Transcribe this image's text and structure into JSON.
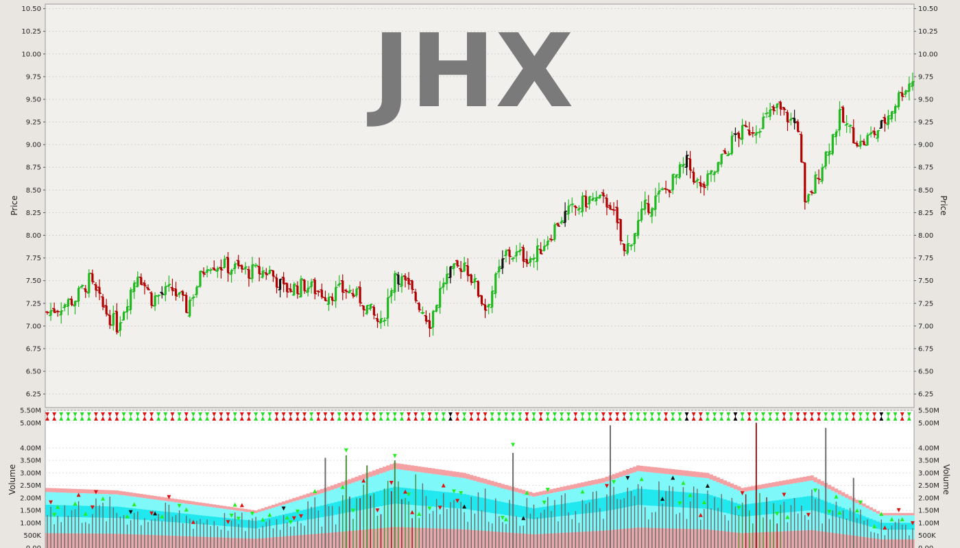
{
  "chart_data": [
    {
      "type": "candlestick",
      "title": "JHX",
      "ylabel": "Price",
      "ylim": [
        6.1,
        10.55
      ],
      "ytick_labels": [
        "10.50",
        "10.25",
        "10.00",
        "9.75",
        "9.50",
        "9.25",
        "9.00",
        "8.75",
        "8.50",
        "8.25",
        "8.00",
        "7.75",
        "7.50",
        "7.25",
        "7.00",
        "6.75",
        "6.50",
        "6.25"
      ],
      "grid": true,
      "n_bars": 250,
      "anchors": [
        [
          0,
          7.15
        ],
        [
          8,
          7.3
        ],
        [
          12,
          7.5
        ],
        [
          16,
          7.2
        ],
        [
          20,
          7.0
        ],
        [
          26,
          7.6
        ],
        [
          30,
          7.3
        ],
        [
          36,
          7.4
        ],
        [
          40,
          7.2
        ],
        [
          46,
          7.7
        ],
        [
          52,
          7.65
        ],
        [
          58,
          7.6
        ],
        [
          64,
          7.6
        ],
        [
          68,
          7.4
        ],
        [
          74,
          7.45
        ],
        [
          80,
          7.35
        ],
        [
          86,
          7.4
        ],
        [
          90,
          7.3
        ],
        [
          96,
          7.0
        ],
        [
          100,
          7.6
        ],
        [
          106,
          7.3
        ],
        [
          110,
          7.05
        ],
        [
          114,
          7.5
        ],
        [
          120,
          7.7
        ],
        [
          126,
          7.2
        ],
        [
          132,
          7.8
        ],
        [
          140,
          7.75
        ],
        [
          148,
          8.2
        ],
        [
          156,
          8.4
        ],
        [
          162,
          8.35
        ],
        [
          166,
          7.8
        ],
        [
          172,
          8.3
        ],
        [
          178,
          8.5
        ],
        [
          184,
          8.8
        ],
        [
          188,
          8.5
        ],
        [
          192,
          8.7
        ],
        [
          198,
          9.1
        ],
        [
          204,
          9.2
        ],
        [
          210,
          9.4
        ],
        [
          216,
          9.2
        ],
        [
          218,
          8.3
        ],
        [
          222,
          8.7
        ],
        [
          228,
          9.3
        ],
        [
          234,
          9.0
        ],
        [
          240,
          9.2
        ],
        [
          246,
          9.6
        ],
        [
          249,
          9.72
        ]
      ]
    },
    {
      "type": "bar",
      "ylabel": "Volume",
      "ylim": [
        0,
        5500000
      ],
      "ytick_labels": [
        "5.50M",
        "5.00M",
        "4.00M",
        "3.50M",
        "3.00M",
        "2.50M",
        "2.00M",
        "1.50M",
        "1.00M",
        "500K",
        "0.00"
      ],
      "grid": true,
      "spikes": [
        [
          80,
          3600000
        ],
        [
          86,
          3700000
        ],
        [
          92,
          3300000
        ],
        [
          100,
          3500000
        ],
        [
          134,
          3800000
        ],
        [
          162,
          4900000
        ],
        [
          204,
          5000000
        ],
        [
          224,
          4800000
        ],
        [
          232,
          2800000
        ]
      ],
      "band_anchors": [
        [
          0,
          2.4
        ],
        [
          20,
          2.3
        ],
        [
          40,
          1.9
        ],
        [
          60,
          1.5
        ],
        [
          80,
          2.4
        ],
        [
          100,
          3.4
        ],
        [
          120,
          3.0
        ],
        [
          140,
          2.2
        ],
        [
          160,
          2.8
        ],
        [
          170,
          3.3
        ],
        [
          190,
          3.0
        ],
        [
          200,
          2.4
        ],
        [
          220,
          2.9
        ],
        [
          240,
          1.4
        ],
        [
          249,
          1.4
        ]
      ]
    }
  ],
  "colors": {
    "up": "#1fb81f",
    "down": "#b00000",
    "neutral": "#111111",
    "band_pink": "#f5a0a3",
    "band_cyan": "#7ff8fa",
    "band_cyan_dark": "#21e8ee",
    "volume_bar": "#6b6b6b",
    "title": "#7a7a7a"
  }
}
